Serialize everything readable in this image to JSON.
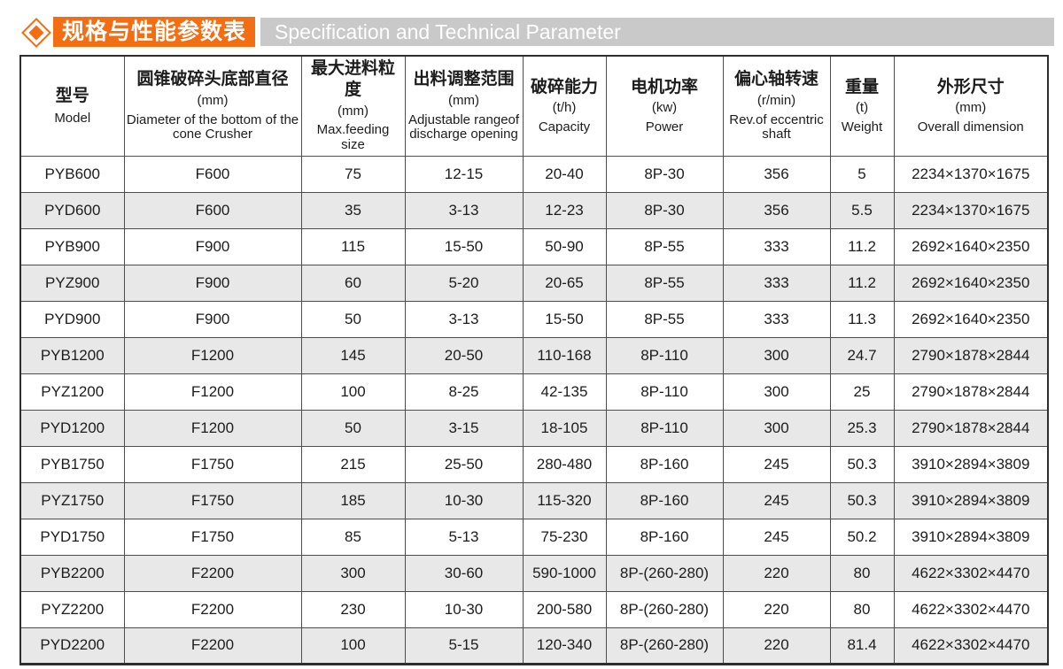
{
  "banner": {
    "title_zh": "规格与性能参数表",
    "title_en": "Specification and Technical Parameter",
    "diamond_icon_color": "#f36d13",
    "band_color": "#c9c9c9"
  },
  "colors": {
    "accent_orange": "#f36d13",
    "row_stripe": "#e8e8e8",
    "border": "#4d4d4d"
  },
  "table": {
    "columns": [
      {
        "zh": "型号",
        "unit": "",
        "en": "Model"
      },
      {
        "zh": "圆锥破碎头底部直径",
        "unit": "(mm)",
        "en": "Diameter of the bottom of the cone Crusher"
      },
      {
        "zh": "最大进料粒度",
        "unit": "(mm)",
        "en": "Max.feeding size"
      },
      {
        "zh": "出料调整范围",
        "unit": "(mm)",
        "en": "Adjustable rangeof discharge opening"
      },
      {
        "zh": "破碎能力",
        "unit": "(t/h)",
        "en": "Capacity"
      },
      {
        "zh": "电机功率",
        "unit": "(kw)",
        "en": "Power"
      },
      {
        "zh": "偏心轴转速",
        "unit": "(r/min)",
        "en": "Rev.of eccentric shaft"
      },
      {
        "zh": "重量",
        "unit": "(t)",
        "en": "Weight"
      },
      {
        "zh": "外形尺寸",
        "unit": "(mm)",
        "en": "Overall dimension"
      }
    ],
    "rows": [
      [
        "PYB600",
        "F600",
        "75",
        "12-15",
        "20-40",
        "8P-30",
        "356",
        "5",
        "2234×1370×1675"
      ],
      [
        "PYD600",
        "F600",
        "35",
        "3-13",
        "12-23",
        "8P-30",
        "356",
        "5.5",
        "2234×1370×1675"
      ],
      [
        "PYB900",
        "F900",
        "115",
        "15-50",
        "50-90",
        "8P-55",
        "333",
        "11.2",
        "2692×1640×2350"
      ],
      [
        "PYZ900",
        "F900",
        "60",
        "5-20",
        "20-65",
        "8P-55",
        "333",
        "11.2",
        "2692×1640×2350"
      ],
      [
        "PYD900",
        "F900",
        "50",
        "3-13",
        "15-50",
        "8P-55",
        "333",
        "11.3",
        "2692×1640×2350"
      ],
      [
        "PYB1200",
        "F1200",
        "145",
        "20-50",
        "110-168",
        "8P-110",
        "300",
        "24.7",
        "2790×1878×2844"
      ],
      [
        "PYZ1200",
        "F1200",
        "100",
        "8-25",
        "42-135",
        "8P-110",
        "300",
        "25",
        "2790×1878×2844"
      ],
      [
        "PYD1200",
        "F1200",
        "50",
        "3-15",
        "18-105",
        "8P-110",
        "300",
        "25.3",
        "2790×1878×2844"
      ],
      [
        "PYB1750",
        "F1750",
        "215",
        "25-50",
        "280-480",
        "8P-160",
        "245",
        "50.3",
        "3910×2894×3809"
      ],
      [
        "PYZ1750",
        "F1750",
        "185",
        "10-30",
        "115-320",
        "8P-160",
        "245",
        "50.3",
        "3910×2894×3809"
      ],
      [
        "PYD1750",
        "F1750",
        "85",
        "5-13",
        "75-230",
        "8P-160",
        "245",
        "50.2",
        "3910×2894×3809"
      ],
      [
        "PYB2200",
        "F2200",
        "300",
        "30-60",
        "590-1000",
        "8P-(260-280)",
        "220",
        "80",
        "4622×3302×4470"
      ],
      [
        "PYZ2200",
        "F2200",
        "230",
        "10-30",
        "200-580",
        "8P-(260-280)",
        "220",
        "80",
        "4622×3302×4470"
      ],
      [
        "PYD2200",
        "F2200",
        "100",
        "5-15",
        "120-340",
        "8P-(260-280)",
        "220",
        "81.4",
        "4622×3302×4470"
      ]
    ]
  }
}
